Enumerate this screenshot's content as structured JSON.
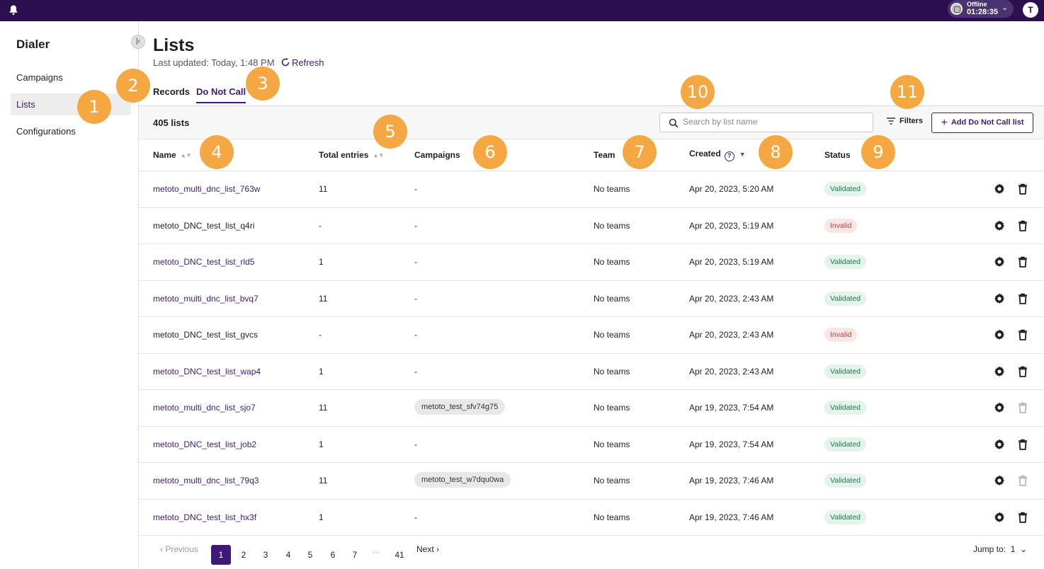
{
  "topbar": {
    "status_label": "Offline",
    "status_time": "01:28:35",
    "avatar_initial": "T"
  },
  "sidebar": {
    "title": "Dialer",
    "items": [
      {
        "label": "Campaigns",
        "active": false
      },
      {
        "label": "Lists",
        "active": true
      },
      {
        "label": "Configurations",
        "active": false
      }
    ]
  },
  "header": {
    "title": "Lists",
    "last_updated": "Last updated: Today, 1:48 PM",
    "refresh_label": "Refresh"
  },
  "tabs": [
    {
      "label": "Records",
      "active": false
    },
    {
      "label": "Do Not Call",
      "active": true
    }
  ],
  "toolbar": {
    "count": "405 lists",
    "search_placeholder": "Search by list name",
    "filters_label": "Filters",
    "add_label": "Add Do Not Call list"
  },
  "table": {
    "columns": {
      "name": "Name",
      "total_entries": "Total entries",
      "campaigns": "Campaigns",
      "team": "Team",
      "created": "Created",
      "status": "Status"
    },
    "rows": [
      {
        "name": "metoto_multi_dnc_list_763w",
        "link": true,
        "entries": "11",
        "campaign": "-",
        "campaign_chip": false,
        "team": "No teams",
        "created": "Apr 20, 2023, 5:20 AM",
        "status": "Validated",
        "status_kind": "ok",
        "trash_disabled": false
      },
      {
        "name": "metoto_DNC_test_list_q4ri",
        "link": false,
        "entries": "-",
        "campaign": "-",
        "campaign_chip": false,
        "team": "No teams",
        "created": "Apr 20, 2023, 5:19 AM",
        "status": "Invalid",
        "status_kind": "bad",
        "trash_disabled": false
      },
      {
        "name": "metoto_DNC_test_list_rld5",
        "link": true,
        "entries": "1",
        "campaign": "-",
        "campaign_chip": false,
        "team": "No teams",
        "created": "Apr 20, 2023, 5:19 AM",
        "status": "Validated",
        "status_kind": "ok",
        "trash_disabled": false
      },
      {
        "name": "metoto_multi_dnc_list_bvq7",
        "link": true,
        "entries": "11",
        "campaign": "-",
        "campaign_chip": false,
        "team": "No teams",
        "created": "Apr 20, 2023, 2:43 AM",
        "status": "Validated",
        "status_kind": "ok",
        "trash_disabled": false
      },
      {
        "name": "metoto_DNC_test_list_gvcs",
        "link": false,
        "entries": "-",
        "campaign": "-",
        "campaign_chip": false,
        "team": "No teams",
        "created": "Apr 20, 2023, 2:43 AM",
        "status": "Invalid",
        "status_kind": "bad",
        "trash_disabled": false
      },
      {
        "name": "metoto_DNC_test_list_wap4",
        "link": true,
        "entries": "1",
        "campaign": "-",
        "campaign_chip": false,
        "team": "No teams",
        "created": "Apr 20, 2023, 2:43 AM",
        "status": "Validated",
        "status_kind": "ok",
        "trash_disabled": false
      },
      {
        "name": "metoto_multi_dnc_list_sjo7",
        "link": true,
        "entries": "11",
        "campaign": "metoto_test_sfv74g75",
        "campaign_chip": true,
        "team": "No teams",
        "created": "Apr 19, 2023, 7:54 AM",
        "status": "Validated",
        "status_kind": "ok",
        "trash_disabled": true
      },
      {
        "name": "metoto_DNC_test_list_job2",
        "link": true,
        "entries": "1",
        "campaign": "-",
        "campaign_chip": false,
        "team": "No teams",
        "created": "Apr 19, 2023, 7:54 AM",
        "status": "Validated",
        "status_kind": "ok",
        "trash_disabled": false
      },
      {
        "name": "metoto_multi_dnc_list_79q3",
        "link": true,
        "entries": "11",
        "campaign": "metoto_test_w7dqu0wa",
        "campaign_chip": true,
        "team": "No teams",
        "created": "Apr 19, 2023, 7:46 AM",
        "status": "Validated",
        "status_kind": "ok",
        "trash_disabled": true
      },
      {
        "name": "metoto_DNC_test_list_hx3f",
        "link": true,
        "entries": "1",
        "campaign": "-",
        "campaign_chip": false,
        "team": "No teams",
        "created": "Apr 19, 2023, 7:46 AM",
        "status": "Validated",
        "status_kind": "ok",
        "trash_disabled": false
      }
    ]
  },
  "pagination": {
    "prev_label": "Previous",
    "next_label": "Next",
    "pages": [
      "1",
      "2",
      "3",
      "4",
      "5",
      "6",
      "7"
    ],
    "ellipsis": "...",
    "last_page": "41",
    "current": "1",
    "jump_label": "Jump to:",
    "jump_value": "1"
  },
  "callouts": [
    "1",
    "2",
    "3",
    "4",
    "5",
    "6",
    "7",
    "8",
    "9",
    "10",
    "11"
  ],
  "colors": {
    "topbar": "#2b0f4f",
    "accent": "#3d1a78",
    "callout": "#f5a742",
    "validated_bg": "#e4f3ec",
    "invalid_bg": "#fbe6e6"
  }
}
